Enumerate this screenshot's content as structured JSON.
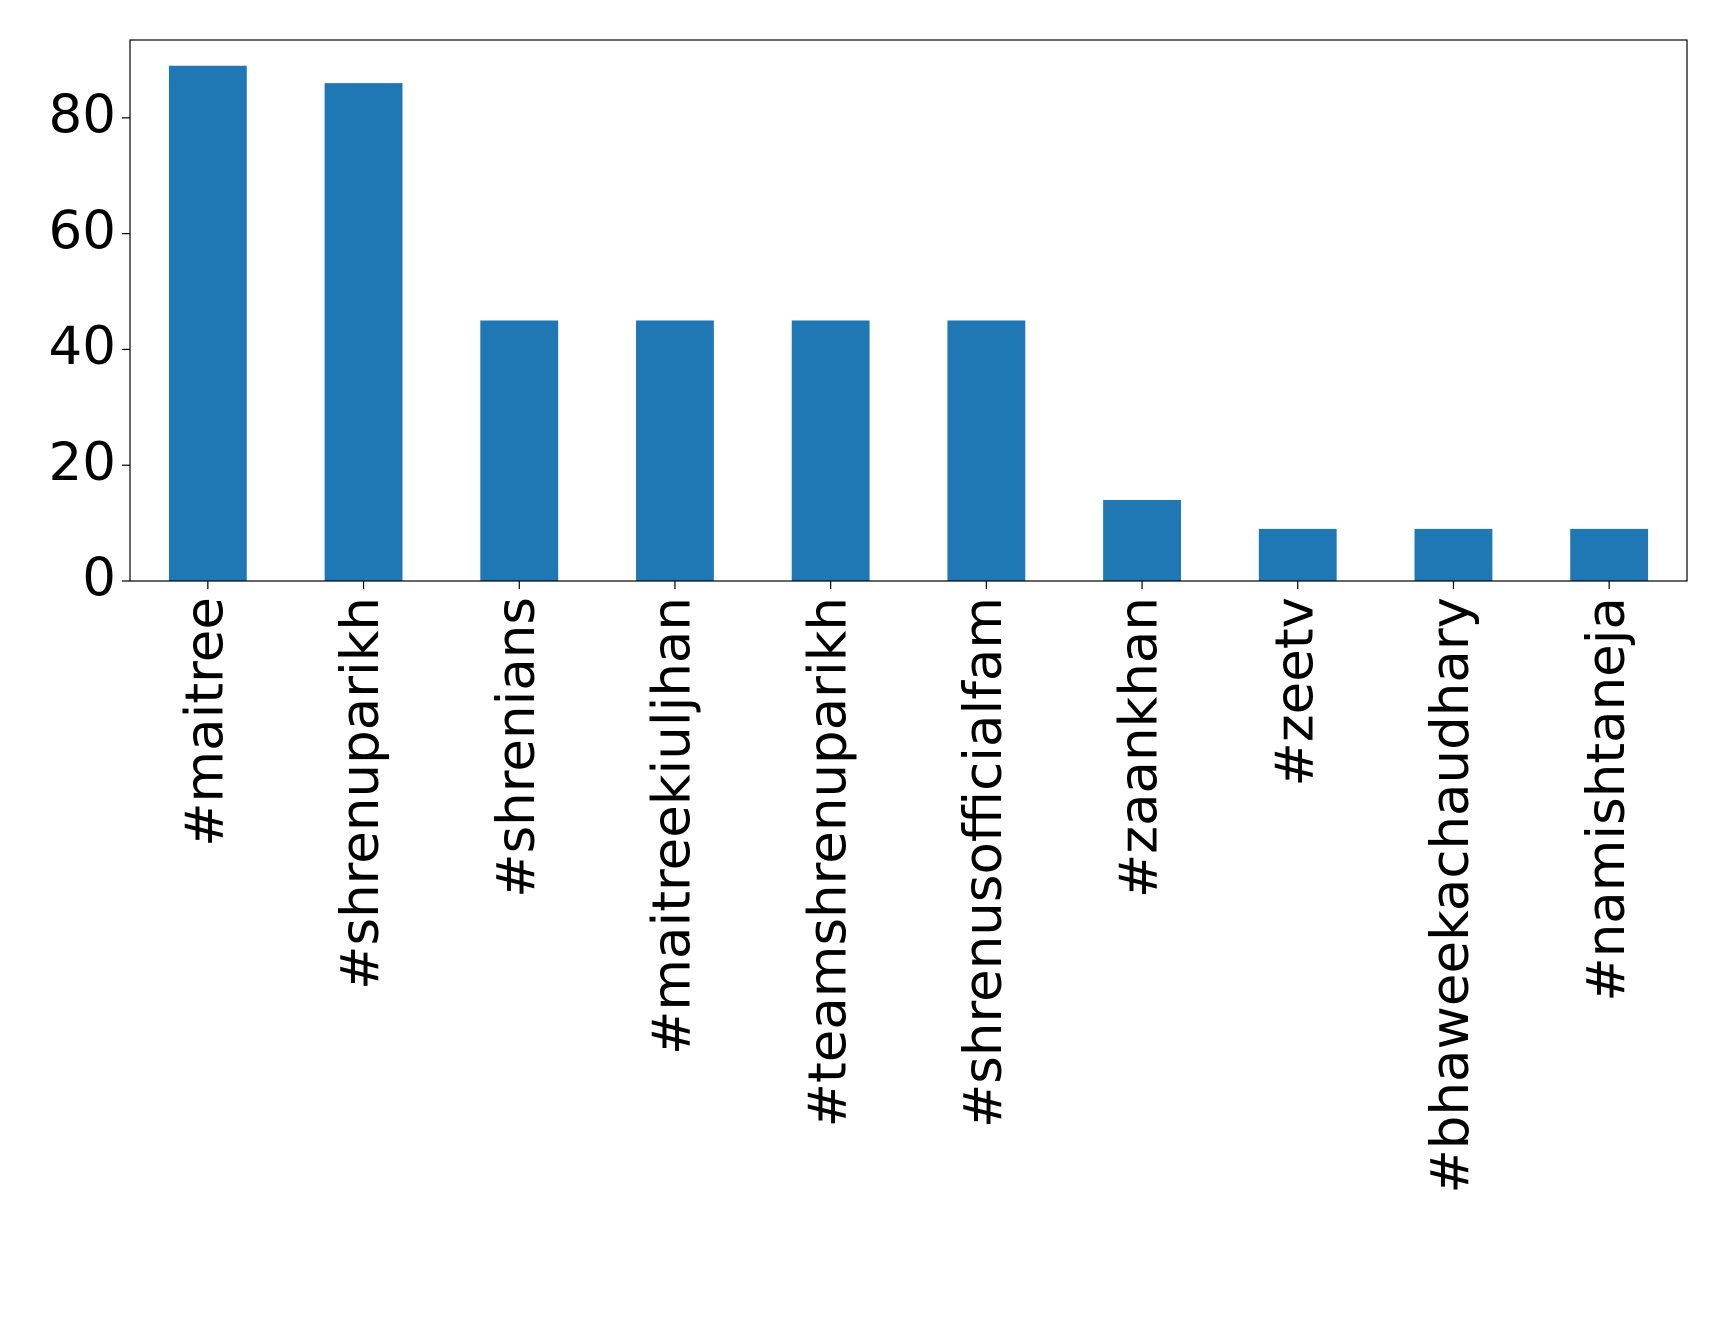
{
  "chart_data": {
    "type": "bar",
    "categories": [
      "#maitree",
      "#shrenuparikh",
      "#shrenians",
      "#maitreekiuljhan",
      "#teamshrenuparikh",
      "#shrenusofficialfam",
      "#zaankhan",
      "#zeetv",
      "#bhaweekachaudhary",
      "#namishtaneja"
    ],
    "values": [
      89,
      86,
      45,
      45,
      45,
      45,
      14,
      9,
      9,
      9
    ],
    "color": "#1f77b4",
    "ylim": [
      0,
      93.45
    ],
    "yticks": [
      0,
      20,
      40,
      60,
      80
    ],
    "grid": false
  }
}
